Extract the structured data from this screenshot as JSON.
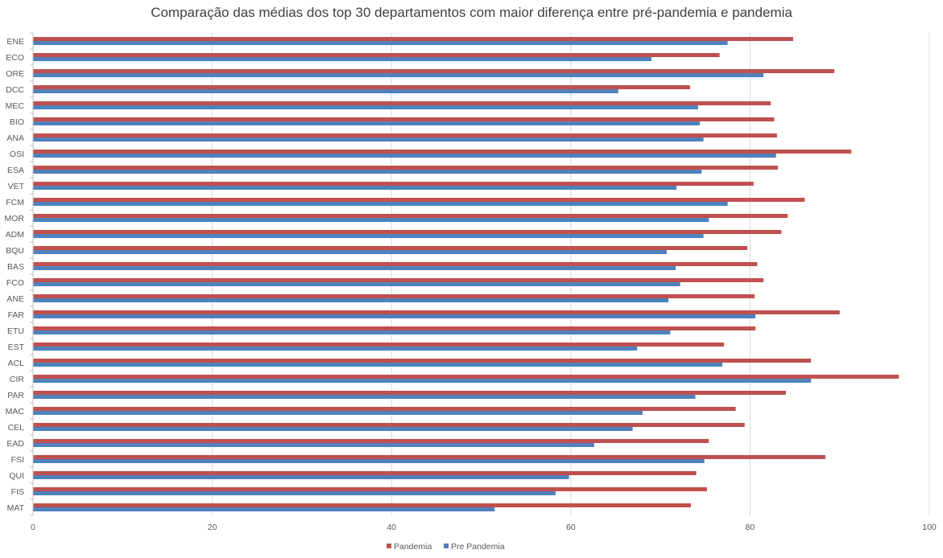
{
  "chart_data": {
    "type": "bar",
    "orientation": "horizontal",
    "title": "Comparação das médias dos top 30 departamentos com maior diferença entre pré-pandemia e pandemia",
    "xlabel": "",
    "ylabel": "",
    "xlim": [
      0,
      100
    ],
    "xticks": [
      0,
      20,
      40,
      60,
      80,
      100
    ],
    "grid": true,
    "legend_position": "bottom",
    "categories": [
      "ENE",
      "ECO",
      "ORE",
      "DCC",
      "MEC",
      "BIO",
      "ANA",
      "OSI",
      "ESA",
      "VET",
      "FCM",
      "MOR",
      "ADM",
      "BQU",
      "BAS",
      "FCO",
      "ANE",
      "FAR",
      "ETU",
      "EST",
      "ACL",
      "CIR",
      "PAR",
      "MAC",
      "CEL",
      "EAD",
      "FSI",
      "QUI",
      "FIS",
      "MAT"
    ],
    "series": [
      {
        "name": "Pandemia",
        "color": "#c0504d",
        "values": [
          84.8,
          76.6,
          89.4,
          73.3,
          82.3,
          82.7,
          83.0,
          91.3,
          83.1,
          80.4,
          86.1,
          84.2,
          83.5,
          79.7,
          80.8,
          81.5,
          80.5,
          90.0,
          80.6,
          77.1,
          86.8,
          96.6,
          84.0,
          78.4,
          79.4,
          75.4,
          88.4,
          74.0,
          75.2,
          73.4
        ]
      },
      {
        "name": "Pre Pandemia",
        "color": "#4f81bd",
        "values": [
          77.5,
          69.0,
          81.5,
          65.3,
          74.2,
          74.4,
          74.8,
          82.9,
          74.6,
          71.8,
          77.5,
          75.4,
          74.8,
          70.7,
          71.7,
          72.2,
          70.9,
          80.6,
          71.1,
          67.4,
          76.9,
          86.8,
          73.9,
          68.0,
          66.9,
          62.6,
          74.9,
          59.8,
          58.3,
          51.5
        ]
      }
    ]
  }
}
